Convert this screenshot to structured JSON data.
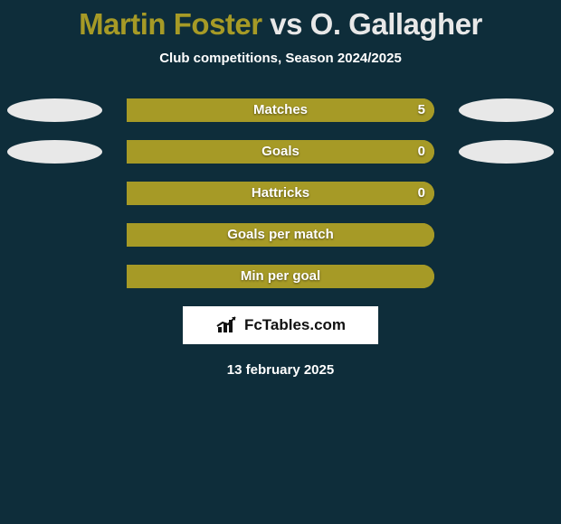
{
  "title": {
    "player1": "Martin Foster",
    "vs": " vs ",
    "player2": "O. Gallagher",
    "p1_color": "#a69a26",
    "p2_color": "#e8e8e8"
  },
  "subtitle": "Club competitions, Season 2024/2025",
  "colors": {
    "bg": "#0e2d3a",
    "p1_bar": "#a69a26",
    "p2_bar": "#e8e8e8",
    "oval_left": "#e8e8e8",
    "oval_right": "#e8e8e8",
    "text": "#ffffff"
  },
  "stats": [
    {
      "label": "Matches",
      "left_val": "",
      "right_val": "5",
      "p1_pct": 0,
      "p2_pct": 100,
      "show_left_oval": true,
      "show_right_oval": true
    },
    {
      "label": "Goals",
      "left_val": "",
      "right_val": "0",
      "p1_pct": 0,
      "p2_pct": 100,
      "show_left_oval": true,
      "show_right_oval": true
    },
    {
      "label": "Hattricks",
      "left_val": "",
      "right_val": "0",
      "p1_pct": 0,
      "p2_pct": 100,
      "show_left_oval": false,
      "show_right_oval": false
    },
    {
      "label": "Goals per match",
      "left_val": "",
      "right_val": "",
      "p1_pct": 0,
      "p2_pct": 100,
      "show_left_oval": false,
      "show_right_oval": false
    },
    {
      "label": "Min per goal",
      "left_val": "",
      "right_val": "",
      "p1_pct": 0,
      "p2_pct": 100,
      "show_left_oval": false,
      "show_right_oval": false
    }
  ],
  "attrib": "FcTables.com",
  "footer_date": "13 february 2025"
}
